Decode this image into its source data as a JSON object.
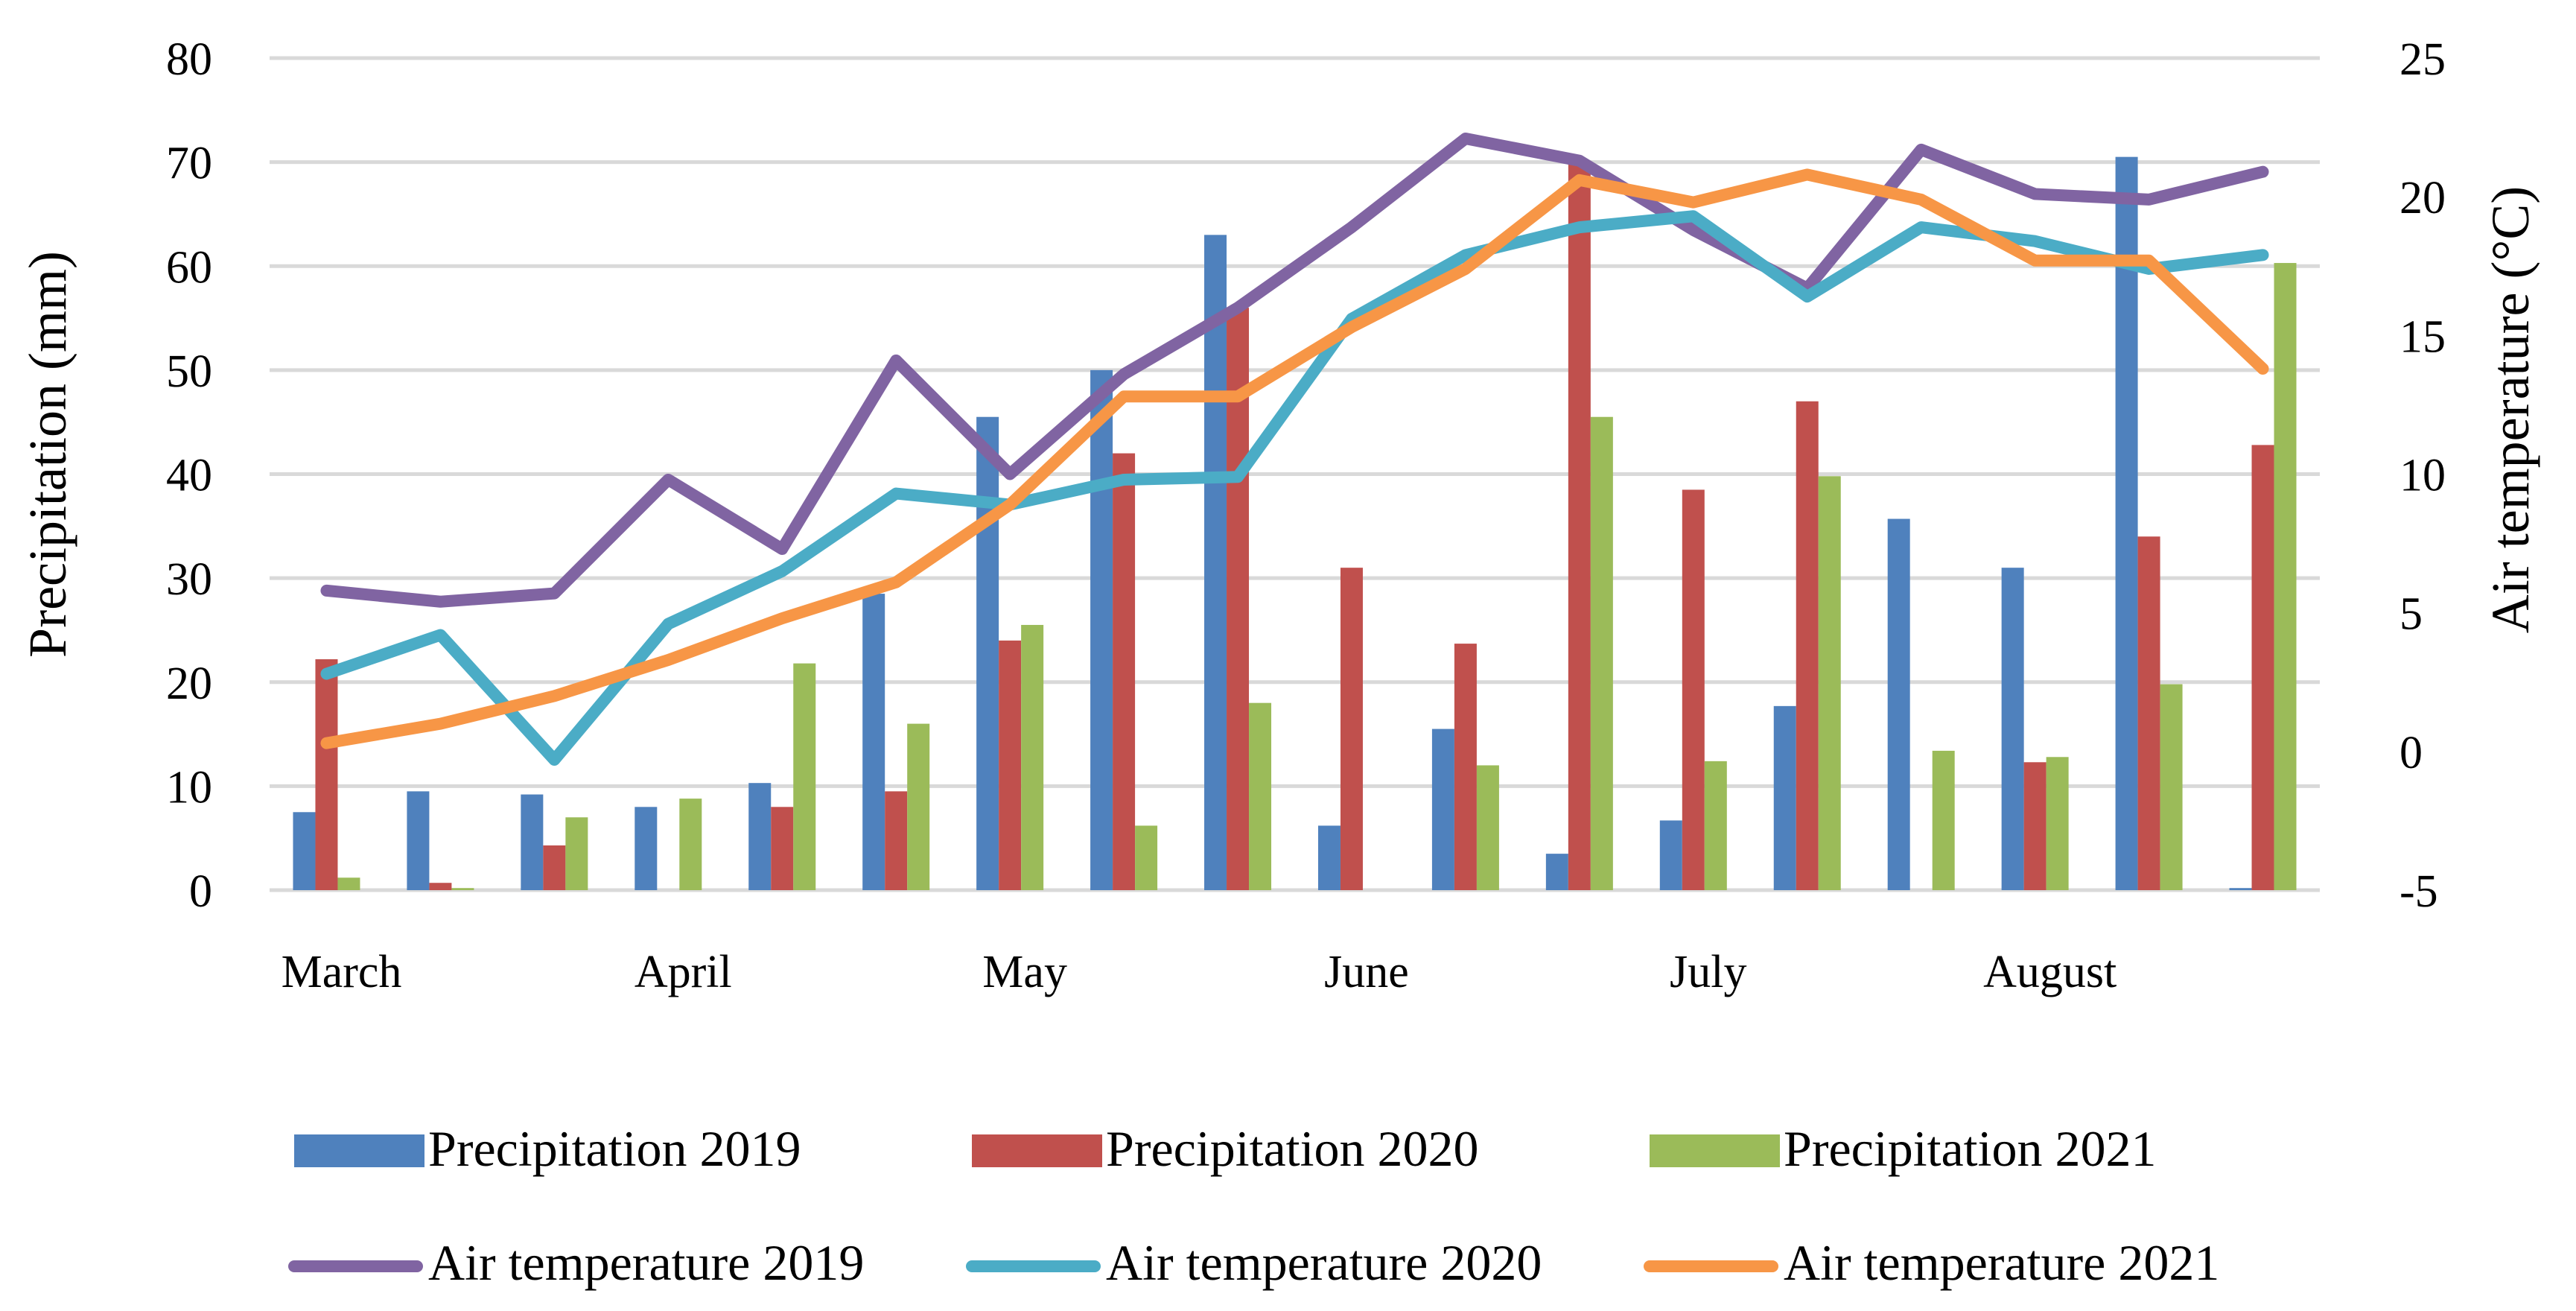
{
  "chart_data": {
    "type": "bar+line",
    "title": "",
    "xlabel": "",
    "ylabel": "Precipitation (mm)",
    "y2label": "Air temperature (°C)",
    "ylim": [
      0,
      80
    ],
    "y2lim": [
      -5,
      25
    ],
    "yticks": [
      "0",
      "10",
      "20",
      "30",
      "40",
      "50",
      "60",
      "70",
      "80"
    ],
    "y2ticks": [
      "-5",
      "0",
      "5",
      "10",
      "15",
      "20",
      "25"
    ],
    "month_labels": [
      {
        "label": "March",
        "index": 0
      },
      {
        "label": "April",
        "index": 3
      },
      {
        "label": "May",
        "index": 6
      },
      {
        "label": "June",
        "index": 9
      },
      {
        "label": "July",
        "index": 12
      },
      {
        "label": "August",
        "index": 15
      }
    ],
    "n_periods": 18,
    "legend_position": "bottom",
    "bar_series": [
      {
        "name": "Precipitation  2019",
        "color": "#4f81bd",
        "values": [
          7.5,
          9.5,
          9.2,
          8.0,
          10.3,
          28.5,
          45.5,
          50.0,
          63.0,
          6.2,
          15.5,
          3.5,
          6.7,
          17.7,
          35.7,
          31.0,
          70.5,
          0.2
        ]
      },
      {
        "name": "Precipitation  2020",
        "color": "#c0504d",
        "values": [
          22.2,
          0.7,
          4.3,
          0.0,
          8.0,
          9.5,
          24.0,
          42.0,
          56.0,
          31.0,
          23.7,
          70.0,
          38.5,
          47.0,
          0.0,
          12.3,
          34.0,
          42.8
        ]
      },
      {
        "name": "Precipitation  2021",
        "color": "#9bbb59",
        "values": [
          1.2,
          0.2,
          7.0,
          8.8,
          21.8,
          16.0,
          25.5,
          6.2,
          18.0,
          0.0,
          12.0,
          45.5,
          12.4,
          39.8,
          13.4,
          12.8,
          19.8,
          60.3
        ]
      }
    ],
    "line_series": [
      {
        "name": "Air temperature 2019",
        "color": "#8064a2",
        "values": [
          5.8,
          5.4,
          5.7,
          9.8,
          7.3,
          14.1,
          10.0,
          13.6,
          16.0,
          18.9,
          22.1,
          21.3,
          18.8,
          16.7,
          21.7,
          20.1,
          19.9,
          20.9
        ]
      },
      {
        "name": "Air temperature 2020",
        "color": "#4bacc6",
        "values": [
          2.8,
          4.2,
          -0.3,
          4.6,
          6.5,
          9.3,
          8.9,
          9.8,
          9.9,
          15.6,
          17.9,
          18.9,
          19.3,
          16.4,
          18.9,
          18.4,
          17.4,
          17.9
        ]
      },
      {
        "name": "Air temperature 2021",
        "color": "#f79646",
        "values": [
          0.3,
          1.0,
          2.0,
          3.3,
          4.8,
          6.1,
          8.9,
          12.8,
          12.8,
          15.3,
          17.4,
          20.6,
          19.8,
          20.8,
          19.9,
          17.7,
          17.7,
          13.8
        ]
      }
    ]
  }
}
